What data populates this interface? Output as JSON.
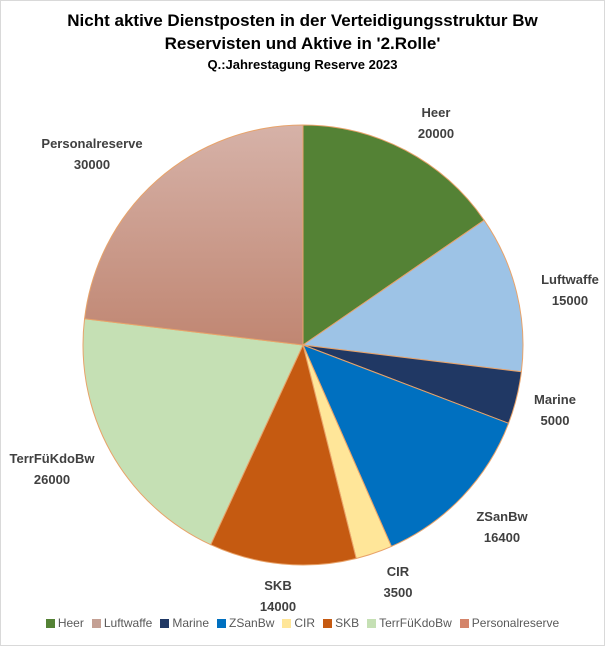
{
  "chart_data": {
    "type": "pie",
    "title": "Nicht aktive Dienstposten in der Verteidigungsstruktur Bw",
    "subtitle": "Reservisten und Aktive in '2.Rolle'",
    "source": "Q.:Jahrestagung  Reserve 2023",
    "slices": [
      {
        "label": "Heer",
        "value": 20000,
        "value_text": "20000",
        "color": "#548235",
        "legend_color": "#548235"
      },
      {
        "label": "Luftwaffe",
        "value": 15000,
        "value_text": "15000",
        "color": "#9dc3e6",
        "legend_color": "#c4a094"
      },
      {
        "label": "Marine",
        "value": 5000,
        "value_text": "5000",
        "color": "#203864",
        "legend_color": "#203864"
      },
      {
        "label": "ZSanBw",
        "value": 16400,
        "value_text": "16400",
        "color": "#0070c0",
        "legend_color": "#0070c0"
      },
      {
        "label": "CIR",
        "value": 3500,
        "value_text": "3500",
        "color": "#ffe699",
        "legend_color": "#ffe699"
      },
      {
        "label": "SKB",
        "value": 14000,
        "value_text": "14000",
        "color": "#c55a11",
        "legend_color": "#c55a11"
      },
      {
        "label": "TerrFüKdoBw",
        "value": 26000,
        "value_text": "26000",
        "color": "#c5e0b4",
        "legend_color": "#c5e0b4"
      },
      {
        "label": "Personalreserve",
        "value": 30000,
        "value_text": "30000",
        "color": "#c49484",
        "legend_color": "#d4846a"
      }
    ],
    "legend_position": "bottom"
  }
}
